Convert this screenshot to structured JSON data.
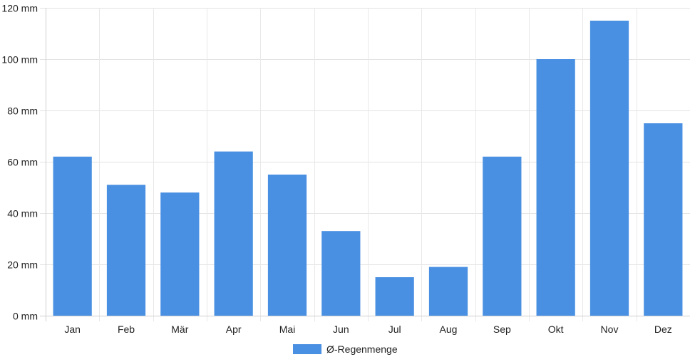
{
  "chart_data": {
    "type": "bar",
    "title": "",
    "xlabel": "",
    "ylabel": "",
    "categories": [
      "Jan",
      "Feb",
      "Mär",
      "Apr",
      "Mai",
      "Jun",
      "Jul",
      "Aug",
      "Sep",
      "Okt",
      "Nov",
      "Dez"
    ],
    "series": [
      {
        "name": "Ø-Regenmenge",
        "color": "#4a90e2",
        "values": [
          62,
          51,
          48,
          64,
          55,
          33,
          15,
          19,
          62,
          100,
          115,
          75
        ]
      }
    ],
    "ylim": [
      0,
      120
    ],
    "yticks": [
      0,
      20,
      40,
      60,
      80,
      100,
      120
    ],
    "y_unit": "mm",
    "ytick_labels": [
      "0 mm",
      "20 mm",
      "40 mm",
      "60 mm",
      "80 mm",
      "100 mm",
      "120 mm"
    ],
    "grid": true,
    "legend_position": "bottom"
  }
}
